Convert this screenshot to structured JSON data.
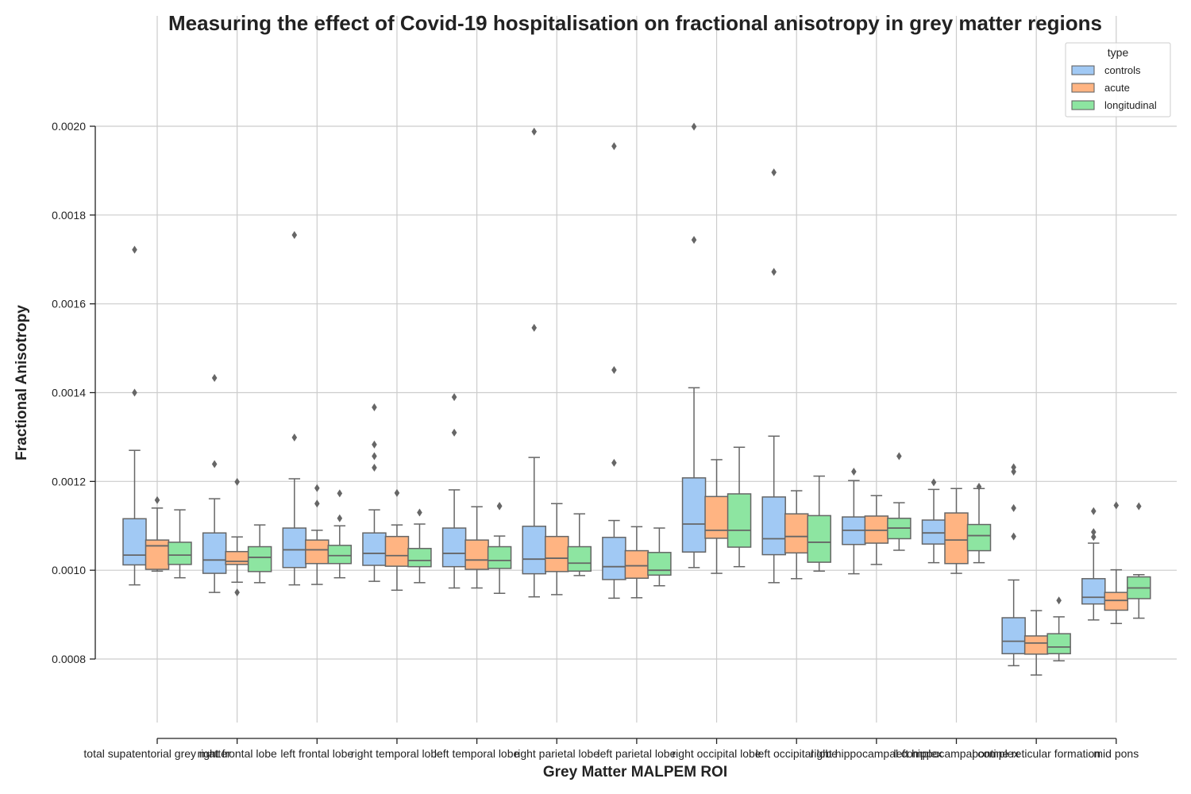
{
  "chart_data": {
    "type": "box",
    "title": "Measuring the effect of Covid-19 hospitalisation on fractional anisotropy in grey matter regions",
    "xlabel": "Grey Matter MALPEM ROI",
    "ylabel": "Fractional Anisotropy",
    "ylim": [
      0.00066,
      0.00225
    ],
    "yticks": [
      0.0008,
      0.001,
      0.0012,
      0.0014,
      0.0016,
      0.0018,
      0.002
    ],
    "ytick_labels": [
      "0.0008",
      "0.0010",
      "0.0012",
      "0.0014",
      "0.0016",
      "0.0018",
      "0.0020"
    ],
    "grid": true,
    "legend": {
      "title": "type",
      "position": "top-right"
    },
    "categories": [
      "total supatentorial grey matter",
      "right frontal lobe",
      "left frontal lobe",
      "right temporal lobe",
      "left temporal lobe",
      "right parietal lobe",
      "left parietal lobe",
      "right occipital lobe",
      "left occipital lobe",
      "right hippocampal complex",
      "left hippocampal complex",
      "pontine reticular formation",
      "mid pons"
    ],
    "series": [
      {
        "name": "controls",
        "color": "#a1c9f4",
        "boxes": [
          {
            "whislo": 0.000967,
            "q1": 0.001012,
            "med": 0.001034,
            "q3": 0.001116,
            "whishi": 0.00127,
            "fliers": [
              0.0014,
              0.001722
            ]
          },
          {
            "whislo": 0.00095,
            "q1": 0.000993,
            "med": 0.001023,
            "q3": 0.001084,
            "whishi": 0.001161,
            "fliers": [
              0.001239,
              0.001433
            ]
          },
          {
            "whislo": 0.000967,
            "q1": 0.001006,
            "med": 0.001046,
            "q3": 0.001095,
            "whishi": 0.001206,
            "fliers": [
              0.001299,
              0.001755
            ]
          },
          {
            "whislo": 0.000975,
            "q1": 0.001011,
            "med": 0.001038,
            "q3": 0.001084,
            "whishi": 0.001136,
            "fliers": [
              0.001231,
              0.001257,
              0.001283,
              0.001367
            ]
          },
          {
            "whislo": 0.00096,
            "q1": 0.001008,
            "med": 0.001038,
            "q3": 0.001095,
            "whishi": 0.001181,
            "fliers": [
              0.00131,
              0.00139
            ]
          },
          {
            "whislo": 0.00094,
            "q1": 0.000992,
            "med": 0.001025,
            "q3": 0.001099,
            "whishi": 0.001254,
            "fliers": [
              0.001546,
              0.001988
            ]
          },
          {
            "whislo": 0.000937,
            "q1": 0.000979,
            "med": 0.001008,
            "q3": 0.001074,
            "whishi": 0.001112,
            "fliers": [
              0.001242,
              0.001451,
              0.001955
            ]
          },
          {
            "whislo": 0.001006,
            "q1": 0.001041,
            "med": 0.001104,
            "q3": 0.001208,
            "whishi": 0.001411,
            "fliers": [
              0.001744,
              0.001999
            ]
          },
          {
            "whislo": 0.000972,
            "q1": 0.001035,
            "med": 0.001071,
            "q3": 0.001165,
            "whishi": 0.001302,
            "fliers": [
              0.001672,
              0.001896
            ]
          },
          {
            "whislo": 0.000992,
            "q1": 0.001058,
            "med": 0.00109,
            "q3": 0.00112,
            "whishi": 0.001202,
            "fliers": [
              0.001222
            ]
          },
          {
            "whislo": 0.001017,
            "q1": 0.001059,
            "med": 0.001084,
            "q3": 0.001113,
            "whishi": 0.001182,
            "fliers": [
              0.001198
            ]
          },
          {
            "whislo": 0.000785,
            "q1": 0.000812,
            "med": 0.00084,
            "q3": 0.000893,
            "whishi": 0.000978,
            "fliers": [
              0.001076,
              0.00114,
              0.001222,
              0.001232
            ]
          },
          {
            "whislo": 0.000888,
            "q1": 0.000924,
            "med": 0.000939,
            "q3": 0.000981,
            "whishi": 0.001061,
            "fliers": [
              0.001075,
              0.001086,
              0.001133
            ]
          }
        ]
      },
      {
        "name": "acute",
        "color": "#ffb482",
        "boxes": [
          {
            "whislo": 0.000998,
            "q1": 0.001002,
            "med": 0.001055,
            "q3": 0.001068,
            "whishi": 0.00114,
            "fliers": [
              0.001158
            ]
          },
          {
            "whislo": 0.000973,
            "q1": 0.001013,
            "med": 0.00102,
            "q3": 0.001042,
            "whishi": 0.001075,
            "fliers": [
              0.00095,
              0.001199
            ]
          },
          {
            "whislo": 0.000968,
            "q1": 0.001015,
            "med": 0.001046,
            "q3": 0.001068,
            "whishi": 0.00109,
            "fliers": [
              0.00115,
              0.001185
            ]
          },
          {
            "whislo": 0.000955,
            "q1": 0.001009,
            "med": 0.001033,
            "q3": 0.001076,
            "whishi": 0.001102,
            "fliers": [
              0.001174
            ]
          },
          {
            "whislo": 0.00096,
            "q1": 0.001002,
            "med": 0.001023,
            "q3": 0.001068,
            "whishi": 0.001143,
            "fliers": []
          },
          {
            "whislo": 0.000945,
            "q1": 0.000997,
            "med": 0.001027,
            "q3": 0.001076,
            "whishi": 0.00115,
            "fliers": []
          },
          {
            "whislo": 0.000938,
            "q1": 0.000982,
            "med": 0.00101,
            "q3": 0.001044,
            "whishi": 0.001098,
            "fliers": []
          },
          {
            "whislo": 0.000993,
            "q1": 0.001072,
            "med": 0.00109,
            "q3": 0.001166,
            "whishi": 0.001249,
            "fliers": []
          },
          {
            "whislo": 0.000981,
            "q1": 0.001039,
            "med": 0.001076,
            "q3": 0.001127,
            "whishi": 0.001179,
            "fliers": []
          },
          {
            "whislo": 0.001013,
            "q1": 0.001061,
            "med": 0.00109,
            "q3": 0.001122,
            "whishi": 0.001168,
            "fliers": []
          },
          {
            "whislo": 0.000993,
            "q1": 0.001015,
            "med": 0.001068,
            "q3": 0.001129,
            "whishi": 0.001184,
            "fliers": []
          },
          {
            "whislo": 0.000764,
            "q1": 0.000811,
            "med": 0.000836,
            "q3": 0.000852,
            "whishi": 0.000909,
            "fliers": []
          },
          {
            "whislo": 0.00088,
            "q1": 0.00091,
            "med": 0.000932,
            "q3": 0.00095,
            "whishi": 0.001001,
            "fliers": [
              0.001146
            ]
          }
        ]
      },
      {
        "name": "longitudinal",
        "color": "#8de5a1",
        "boxes": [
          {
            "whislo": 0.000983,
            "q1": 0.001013,
            "med": 0.001034,
            "q3": 0.001063,
            "whishi": 0.001136,
            "fliers": []
          },
          {
            "whislo": 0.000972,
            "q1": 0.000997,
            "med": 0.001029,
            "q3": 0.001053,
            "whishi": 0.001102,
            "fliers": []
          },
          {
            "whislo": 0.000983,
            "q1": 0.001015,
            "med": 0.001033,
            "q3": 0.001056,
            "whishi": 0.0011,
            "fliers": [
              0.001117,
              0.001173
            ]
          },
          {
            "whislo": 0.000972,
            "q1": 0.001008,
            "med": 0.001022,
            "q3": 0.001049,
            "whishi": 0.001104,
            "fliers": [
              0.00113
            ]
          },
          {
            "whislo": 0.000948,
            "q1": 0.001004,
            "med": 0.001022,
            "q3": 0.001053,
            "whishi": 0.001077,
            "fliers": [
              0.001144,
              0.001145
            ]
          },
          {
            "whislo": 0.000988,
            "q1": 0.000998,
            "med": 0.001016,
            "q3": 0.001053,
            "whishi": 0.001127,
            "fliers": []
          },
          {
            "whislo": 0.000965,
            "q1": 0.000989,
            "med": 0.001,
            "q3": 0.00104,
            "whishi": 0.001095,
            "fliers": []
          },
          {
            "whislo": 0.001008,
            "q1": 0.001052,
            "med": 0.00109,
            "q3": 0.001172,
            "whishi": 0.001277,
            "fliers": []
          },
          {
            "whislo": 0.000998,
            "q1": 0.001018,
            "med": 0.001063,
            "q3": 0.001123,
            "whishi": 0.001212,
            "fliers": []
          },
          {
            "whislo": 0.001045,
            "q1": 0.001071,
            "med": 0.001095,
            "q3": 0.001117,
            "whishi": 0.001152,
            "fliers": [
              0.001257
            ]
          },
          {
            "whislo": 0.001017,
            "q1": 0.001044,
            "med": 0.001078,
            "q3": 0.001103,
            "whishi": 0.001184,
            "fliers": [
              0.001188
            ]
          },
          {
            "whislo": 0.000796,
            "q1": 0.000812,
            "med": 0.000827,
            "q3": 0.000857,
            "whishi": 0.000895,
            "fliers": [
              0.000932
            ]
          },
          {
            "whislo": 0.000892,
            "q1": 0.000936,
            "med": 0.00096,
            "q3": 0.000985,
            "whishi": 0.00099,
            "fliers": [
              0.001144
            ]
          }
        ]
      }
    ]
  }
}
